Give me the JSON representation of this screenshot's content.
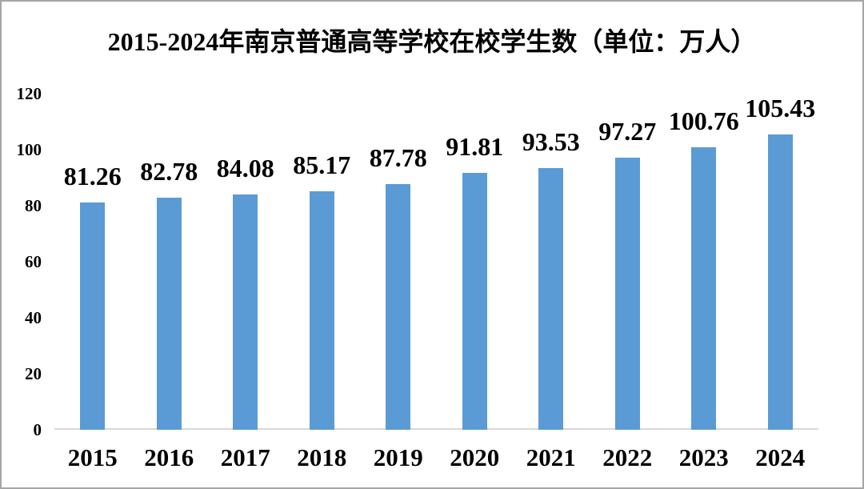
{
  "chart_data": {
    "type": "bar",
    "title": "2015-2024年南京普通高等学校在校学生数（单位：万人）",
    "categories": [
      "2015",
      "2016",
      "2017",
      "2018",
      "2019",
      "2020",
      "2021",
      "2022",
      "2023",
      "2024"
    ],
    "values": [
      81.26,
      82.78,
      84.08,
      85.17,
      87.78,
      91.81,
      93.53,
      97.27,
      100.76,
      105.43
    ],
    "value_labels": [
      "81.26",
      "82.78",
      "84.08",
      "85.17",
      "87.78",
      "91.81",
      "93.53",
      "97.27",
      "100.76",
      "105.43"
    ],
    "xlabel": "",
    "ylabel": "",
    "ylim": [
      0,
      120
    ],
    "y_ticks": [
      0,
      20,
      40,
      60,
      80,
      100,
      120
    ],
    "grid": false,
    "legend_position": "none",
    "data_labels_position": "outside-end",
    "colors": {
      "bar_fill": "#5B9BD5",
      "axis_line": "#D9D9D9",
      "text": "#000000",
      "background": "#FFFFFF",
      "frame_border": "#A6A6A6"
    }
  }
}
